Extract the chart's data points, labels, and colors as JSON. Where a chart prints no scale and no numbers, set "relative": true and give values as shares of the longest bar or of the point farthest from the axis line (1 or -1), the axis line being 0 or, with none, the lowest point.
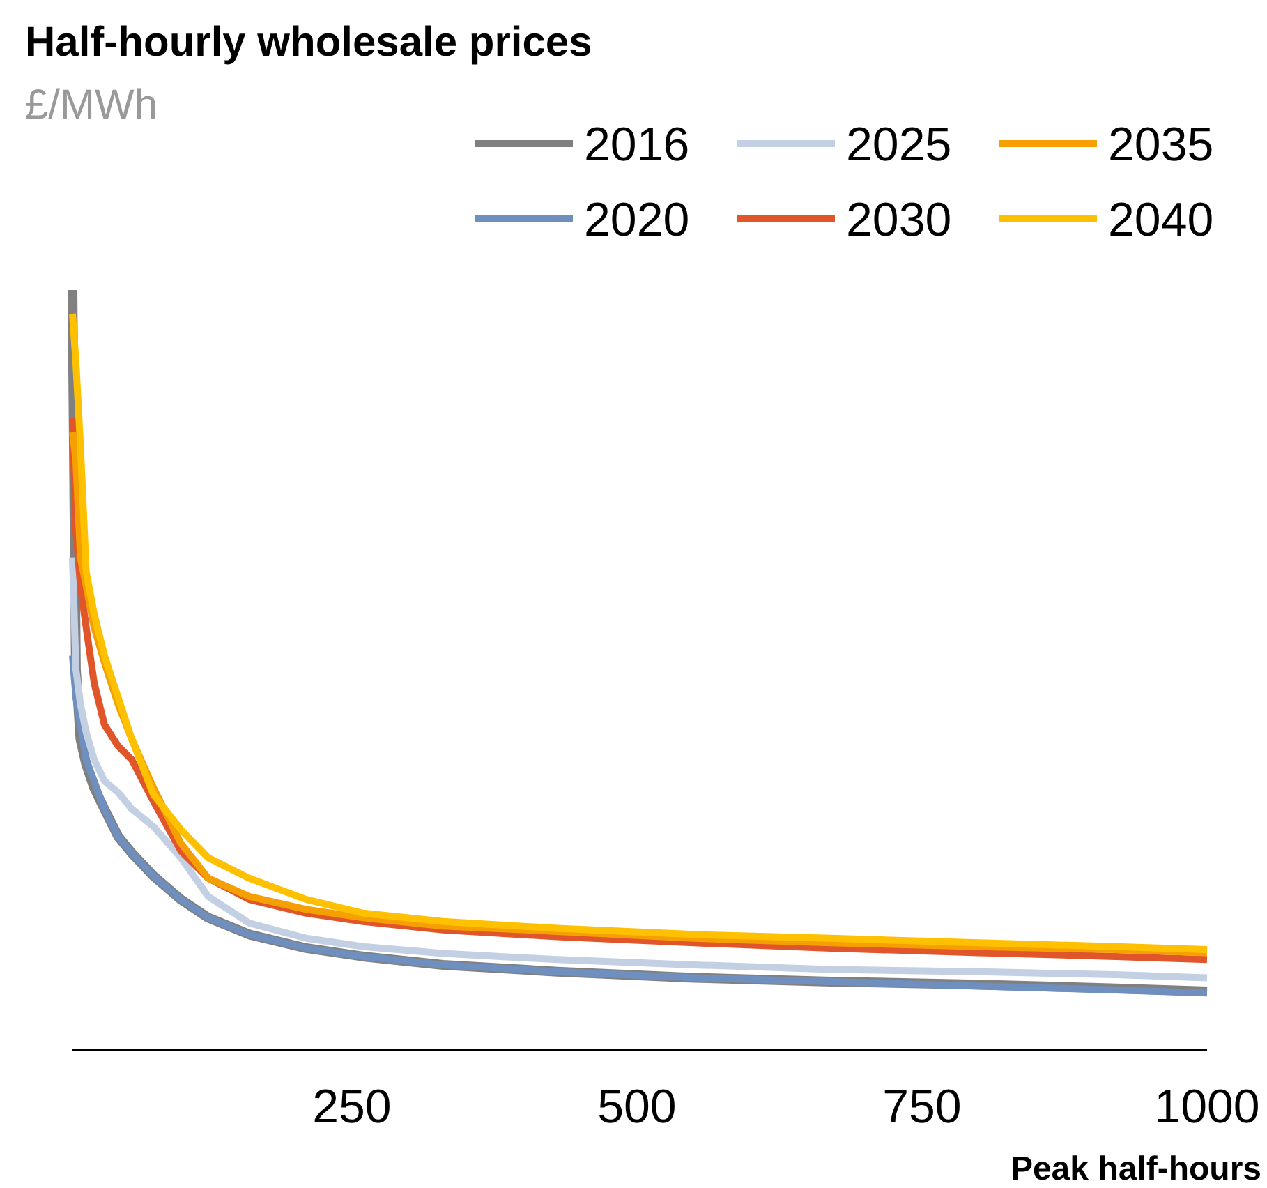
{
  "chart_data": {
    "type": "line",
    "title": "Half-hourly wholesale prices",
    "ylabel": "£/MWh",
    "xlabel": "Peak half-hours",
    "relative": true,
    "legend": "top right",
    "xlim": [
      5,
      1000
    ],
    "xticks": [
      250,
      500,
      750,
      1000
    ],
    "x": [
      5,
      8,
      12,
      17,
      24,
      33,
      45,
      57,
      76,
      100,
      124,
      160,
      210,
      260,
      330,
      430,
      550,
      670,
      800,
      920,
      1000
    ],
    "series": [
      {
        "name": "2016",
        "color": "#808080",
        "values": [
          1.0,
          0.501,
          0.409,
          0.376,
          0.345,
          0.317,
          0.281,
          0.259,
          0.229,
          0.198,
          0.174,
          0.152,
          0.134,
          0.123,
          0.112,
          0.103,
          0.095,
          0.09,
          0.086,
          0.081,
          0.077
        ]
      },
      {
        "name": "2020",
        "color": "#6f8fbf",
        "values": [
          0.519,
          0.464,
          0.428,
          0.382,
          0.354,
          0.317,
          0.281,
          0.259,
          0.229,
          0.198,
          0.174,
          0.152,
          0.134,
          0.123,
          0.112,
          0.103,
          0.095,
          0.09,
          0.084,
          0.079,
          0.075
        ]
      },
      {
        "name": "2025",
        "color": "#c3cfe2",
        "values": [
          0.648,
          0.501,
          0.455,
          0.418,
          0.382,
          0.354,
          0.339,
          0.317,
          0.294,
          0.253,
          0.202,
          0.167,
          0.147,
          0.136,
          0.127,
          0.119,
          0.112,
          0.106,
          0.103,
          0.099,
          0.095
        ]
      },
      {
        "name": "2030",
        "color": "#e0562a",
        "values": [
          0.831,
          0.684,
          0.611,
          0.556,
          0.483,
          0.428,
          0.4,
          0.382,
          0.327,
          0.262,
          0.226,
          0.198,
          0.18,
          0.169,
          0.158,
          0.149,
          0.141,
          0.134,
          0.128,
          0.123,
          0.119
        ]
      },
      {
        "name": "2035",
        "color": "#f5a000",
        "values": [
          0.813,
          0.776,
          0.648,
          0.611,
          0.556,
          0.51,
          0.455,
          0.409,
          0.345,
          0.272,
          0.226,
          0.202,
          0.185,
          0.174,
          0.163,
          0.156,
          0.147,
          0.141,
          0.136,
          0.132,
          0.128
        ]
      },
      {
        "name": "2040",
        "color": "#ffc000",
        "values": [
          0.969,
          0.905,
          0.794,
          0.629,
          0.574,
          0.519,
          0.464,
          0.409,
          0.336,
          0.29,
          0.253,
          0.226,
          0.198,
          0.18,
          0.169,
          0.16,
          0.152,
          0.147,
          0.141,
          0.136,
          0.132
        ]
      }
    ]
  }
}
